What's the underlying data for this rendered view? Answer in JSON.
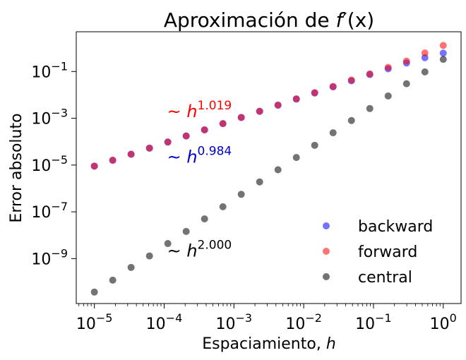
{
  "chart_data": {
    "type": "scatter",
    "title": "Aproximación de f′(x)",
    "title_parts": {
      "prefix": "Aproximación de ",
      "func": "f",
      "prime": "′",
      "arg": "(x)"
    },
    "xlabel": "Espaciamiento, h",
    "xlabel_parts": {
      "text": "Espaciamiento, ",
      "var": "h"
    },
    "ylabel": "Error absoluto",
    "x_scale": "log",
    "y_scale": "log",
    "xlim": [
      5.5e-06,
      1.8
    ],
    "ylim": [
      1.2e-11,
      5.0
    ],
    "x_ticks": [
      {
        "value": 1e-05,
        "base": "10",
        "exp": "−5"
      },
      {
        "value": 0.0001,
        "base": "10",
        "exp": "−4"
      },
      {
        "value": 0.001,
        "base": "10",
        "exp": "−3"
      },
      {
        "value": 0.01,
        "base": "10",
        "exp": "−2"
      },
      {
        "value": 0.1,
        "base": "10",
        "exp": "−1"
      },
      {
        "value": 1,
        "base": "10",
        "exp": "0"
      }
    ],
    "y_ticks": [
      {
        "value": 1e-09,
        "base": "10",
        "exp": "−9"
      },
      {
        "value": 1e-07,
        "base": "10",
        "exp": "−7"
      },
      {
        "value": 1e-05,
        "base": "10",
        "exp": "−5"
      },
      {
        "value": 0.001,
        "base": "10",
        "exp": "−3"
      },
      {
        "value": 0.1,
        "base": "10",
        "exp": "−1"
      }
    ],
    "x": [
      1e-05,
      1.833e-05,
      3.36e-05,
      6.16e-05,
      0.0001129,
      0.0002069,
      0.0003793,
      0.0006952,
      0.001274,
      0.002336,
      0.004281,
      0.007848,
      0.01438,
      0.02637,
      0.04833,
      0.08859,
      0.1624,
      0.2976,
      0.5456,
      1.0
    ],
    "series": [
      {
        "name": "backward",
        "color": "#0000ff",
        "values": [
          9e-06,
          1.6e-05,
          2.9e-05,
          5.3e-05,
          9.6e-05,
          0.000175,
          0.00032,
          0.00059,
          0.00108,
          0.00198,
          0.0036,
          0.0066,
          0.012,
          0.022,
          0.04,
          0.074,
          0.13,
          0.23,
          0.39,
          0.61
        ]
      },
      {
        "name": "forward",
        "color": "#ff0000",
        "values": [
          9e-06,
          1.6e-05,
          2.9e-05,
          5.3e-05,
          9.7e-05,
          0.000175,
          0.00032,
          0.00059,
          0.00109,
          0.002,
          0.0037,
          0.0068,
          0.0125,
          0.023,
          0.043,
          0.079,
          0.15,
          0.28,
          0.62,
          1.3
        ]
      },
      {
        "name": "central",
        "color": "#000000",
        "values": [
          3.7e-11,
          1.2e-10,
          4.2e-10,
          1.3e-09,
          4.4e-09,
          1.45e-08,
          5e-08,
          1.65e-07,
          5.6e-07,
          1.9e-06,
          6.3e-06,
          2.1e-05,
          7e-05,
          0.00024,
          0.0008,
          0.0026,
          0.009,
          0.03,
          0.096,
          0.33
        ]
      }
    ],
    "annotations": [
      {
        "text": "~ h^1.019",
        "prefix": "~ ",
        "var": "h",
        "exp": "1.019",
        "color": "#ff0000",
        "x": 0.00011,
        "y": 0.0011
      },
      {
        "text": "~ h^0.984",
        "prefix": "~ ",
        "var": "h",
        "exp": "0.984",
        "color": "#0000cc",
        "x": 0.00011,
        "y": 1.25e-05
      },
      {
        "text": "~ h^2.000",
        "prefix": "~ ",
        "var": "h",
        "exp": "2.000",
        "color": "#000000",
        "x": 0.00011,
        "y": 1.2e-09
      }
    ],
    "legend": {
      "position": "lower-right",
      "labels": [
        "backward",
        "forward",
        "central"
      ]
    },
    "grid": false,
    "marker_alpha": 0.55
  }
}
